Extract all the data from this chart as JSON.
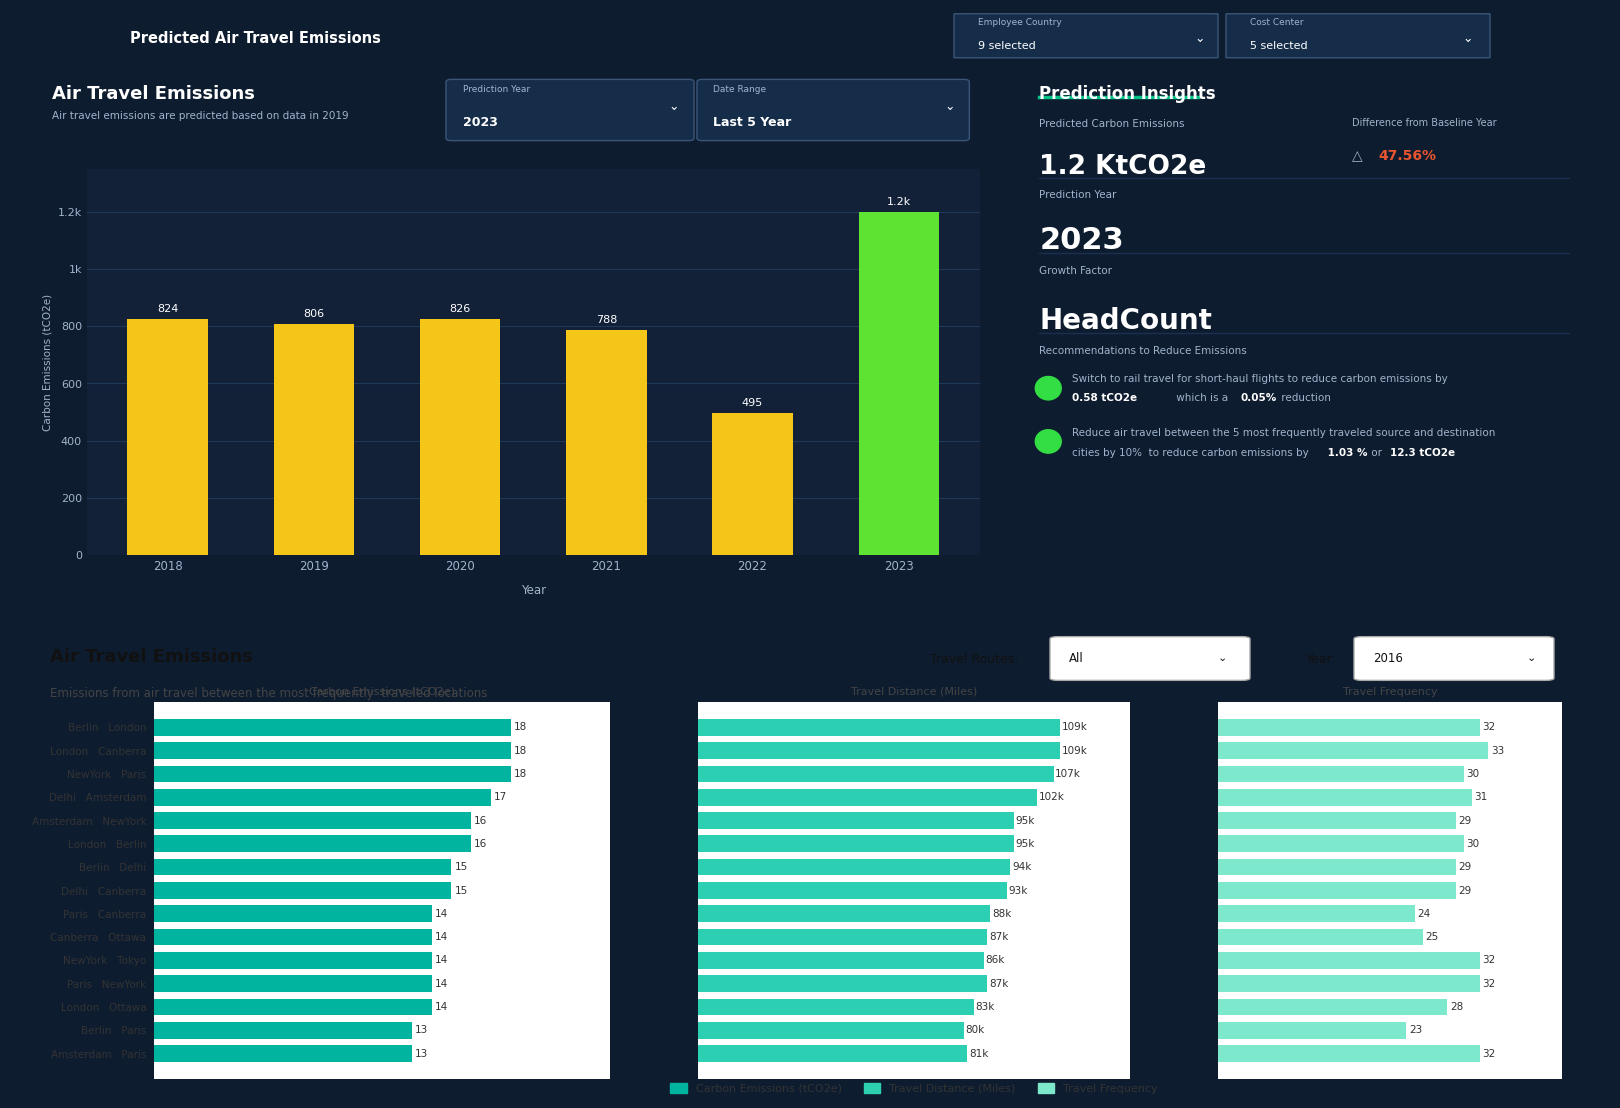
{
  "title": "Predicted Air Travel Emissions",
  "bg_dark": "#0e1c2f",
  "bg_panel": "#122038",
  "bg_medium": "#0a1628",
  "bg_white": "#ffffff",
  "bg_bottom": "#ffffff",
  "text_white": "#ffffff",
  "text_light": "#a0b4cc",
  "text_dark": "#111111",
  "text_gray": "#444444",
  "accent_green": "#00c389",
  "bar_yellow": "#f5c518",
  "bar_green": "#5ee332",
  "teal1": "#00b4a0",
  "teal2": "#2dcfb3",
  "teal3": "#7de8cc",
  "green_dot": "#33dd44",
  "sep_color": "#1a3050",
  "dropdown_bg": "#162d4a",
  "dropdown_border": "#3a5578",
  "bar_years": [
    "2018",
    "2019",
    "2020",
    "2021",
    "2022",
    "2023"
  ],
  "bar_values": [
    824,
    806,
    826,
    788,
    495,
    1200
  ],
  "bar_labels": [
    "824",
    "806",
    "826",
    "788",
    "495",
    "1.2k"
  ],
  "bar_colors": [
    "#f5c518",
    "#f5c518",
    "#f5c518",
    "#f5c518",
    "#f5c518",
    "#5ee332"
  ],
  "bar_ylabel": "Carbon Emissions (tCO2e)",
  "bar_xlabel": "Year",
  "bar_ylim": [
    0,
    1350
  ],
  "bar_yticks": [
    0,
    200,
    400,
    600,
    800,
    1000,
    1200
  ],
  "bar_ytick_labels": [
    "0",
    "200",
    "400",
    "600",
    "800",
    "1k",
    "1.2k"
  ],
  "chart1_title": "Air Travel Emissions",
  "chart1_subtitle": "Air travel emissions are predicted based on data in 2019",
  "insights_title": "Prediction Insights",
  "predicted_label": "Predicted Carbon Emissions",
  "predicted_value": "1.2 KtCO2e",
  "baseline_label": "Difference from Baseline Year",
  "baseline_value": "Δ  47.56%",
  "baseline_pct": "47.56%",
  "prediction_year_label": "Prediction Year",
  "prediction_year_value": "2023",
  "growth_factor_label": "Growth Factor",
  "growth_factor_value": "HeadCount",
  "recommendations_label": "Recommendations to Reduce Emissions",
  "bottom_title": "Air Travel Emissions",
  "bottom_subtitle": "Emissions from air travel between the most frequently  traveled locations",
  "routes_col1": [
    "Berlin",
    "London",
    "NewYork",
    "Delhi",
    "Amsterdam",
    "London",
    "Berlin",
    "Delhi",
    "Paris",
    "Canberra",
    "NewYork",
    "Paris",
    "London",
    "Berlin",
    "Amsterdam"
  ],
  "routes_col2": [
    "London",
    "Canberra",
    "Paris",
    "Amsterdam",
    "NewYork",
    "Berlin",
    "Delhi",
    "Canberra",
    "Canberra",
    "Ottawa",
    "Tokyo",
    "NewYork",
    "Ottawa",
    "Paris",
    "Paris"
  ],
  "co2_values": [
    18,
    18,
    18,
    17,
    16,
    16,
    15,
    15,
    14,
    14,
    14,
    14,
    14,
    13,
    13
  ],
  "dist_values": [
    109,
    109,
    107,
    102,
    95,
    95,
    94,
    93,
    88,
    87,
    86,
    87,
    83,
    80,
    81
  ],
  "freq_values": [
    32,
    33,
    30,
    31,
    29,
    30,
    29,
    29,
    24,
    25,
    32,
    32,
    28,
    23,
    32
  ],
  "legend_items": [
    "Carbon Emissions (tCO2e)",
    "Travel Distance (Miles)",
    "Travel Frequency"
  ],
  "legend_colors": [
    "#00b4a0",
    "#2dcfb3",
    "#7de8cc"
  ]
}
